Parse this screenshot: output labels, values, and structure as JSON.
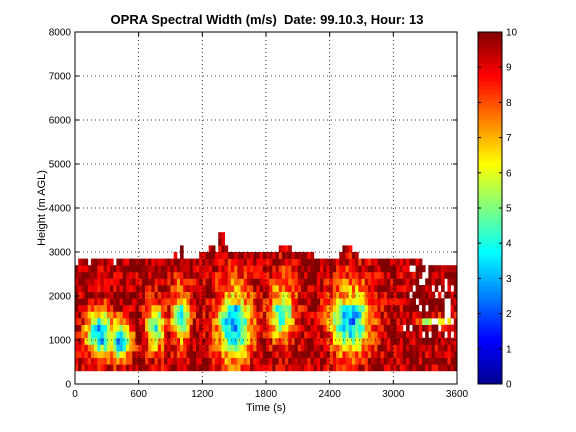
{
  "chart_data": {
    "type": "heatmap",
    "title": "OPRA Spectral Width (m/s)  Date: 99.10.3, Hour: 13",
    "xlabel": "Time (s)",
    "ylabel": "Height (m AGL)",
    "xlim": [
      0,
      3600
    ],
    "ylim": [
      0,
      8000
    ],
    "x_ticks": [
      "0",
      "600",
      "1200",
      "1800",
      "2400",
      "3000",
      "3600"
    ],
    "y_ticks": [
      "0",
      "1000",
      "2000",
      "3000",
      "4000",
      "5000",
      "6000",
      "7000",
      "8000"
    ],
    "grid": true,
    "colorbar": {
      "range": [
        0,
        10
      ],
      "ticks": [
        "0",
        "1",
        "2",
        "3",
        "4",
        "5",
        "6",
        "7",
        "8",
        "9",
        "10"
      ],
      "colormap": "jet"
    },
    "data_extent": {
      "height_min": 300,
      "height_max": 3000,
      "max_top": 3450
    },
    "column_width_s": 30,
    "gate_height_m": 150,
    "column_tops": [
      2700,
      2850,
      2850,
      2850,
      2700,
      2850,
      2850,
      2850,
      2850,
      2850,
      2850,
      2850,
      2700,
      2850,
      2850,
      2850,
      2850,
      2850,
      2850,
      2850,
      2850,
      2850,
      2850,
      2850,
      2850,
      2850,
      2850,
      2850,
      2850,
      2850,
      2850,
      3000,
      2850,
      3150,
      2850,
      2850,
      2850,
      2850,
      2850,
      3000,
      3000,
      3000,
      3150,
      3150,
      3000,
      3450,
      3450,
      3150,
      3000,
      3000,
      3000,
      3000,
      3000,
      3000,
      3000,
      3000,
      3000,
      3000,
      3000,
      3000,
      3000,
      3000,
      3000,
      3000,
      3150,
      3150,
      3150,
      3150,
      3000,
      3000,
      3000,
      3000,
      3000,
      3000,
      3000,
      2850,
      2850,
      2850,
      2850,
      2850,
      2850,
      2850,
      2850,
      3000,
      3150,
      3150,
      3150,
      3000,
      3000,
      2850,
      2850,
      2850,
      2850,
      2850,
      2850,
      2850,
      2850,
      2850,
      2850,
      2850,
      2850,
      2850,
      2850,
      2850,
      2850,
      2850,
      2850,
      2850,
      2850,
      2700,
      2700,
      2700,
      2700,
      2700,
      2700,
      2700,
      2700,
      2700,
      2700,
      2700
    ],
    "cells_note_free": true,
    "cores": [
      {
        "t": 240,
        "h_center": 1150,
        "h_spread": 650,
        "width": 160,
        "min_value": 2.7
      },
      {
        "t": 420,
        "h_center": 1000,
        "h_spread": 600,
        "width": 140,
        "min_value": 3.2
      },
      {
        "t": 760,
        "h_center": 1300,
        "h_spread": 700,
        "width": 110,
        "min_value": 4.2
      },
      {
        "t": 1000,
        "h_center": 1600,
        "h_spread": 800,
        "width": 110,
        "min_value": 3.8
      },
      {
        "t": 1500,
        "h_center": 1400,
        "h_spread": 1100,
        "width": 200,
        "min_value": 2.6
      },
      {
        "t": 1950,
        "h_center": 1700,
        "h_spread": 900,
        "width": 150,
        "min_value": 4.0
      },
      {
        "t": 2600,
        "h_center": 1500,
        "h_spread": 1000,
        "width": 230,
        "min_value": 2.6
      },
      {
        "t": 3400,
        "h_center": 1450,
        "h_spread": 120,
        "width": 200,
        "min_value": 4.3
      }
    ],
    "late_block": {
      "t_start": 3060,
      "t_end": 3600,
      "h_min": 300,
      "h_max": 1100,
      "value": 9.3
    },
    "upper_band": {
      "h_min": 1800,
      "h_max": 2500,
      "value": 8.6
    }
  }
}
